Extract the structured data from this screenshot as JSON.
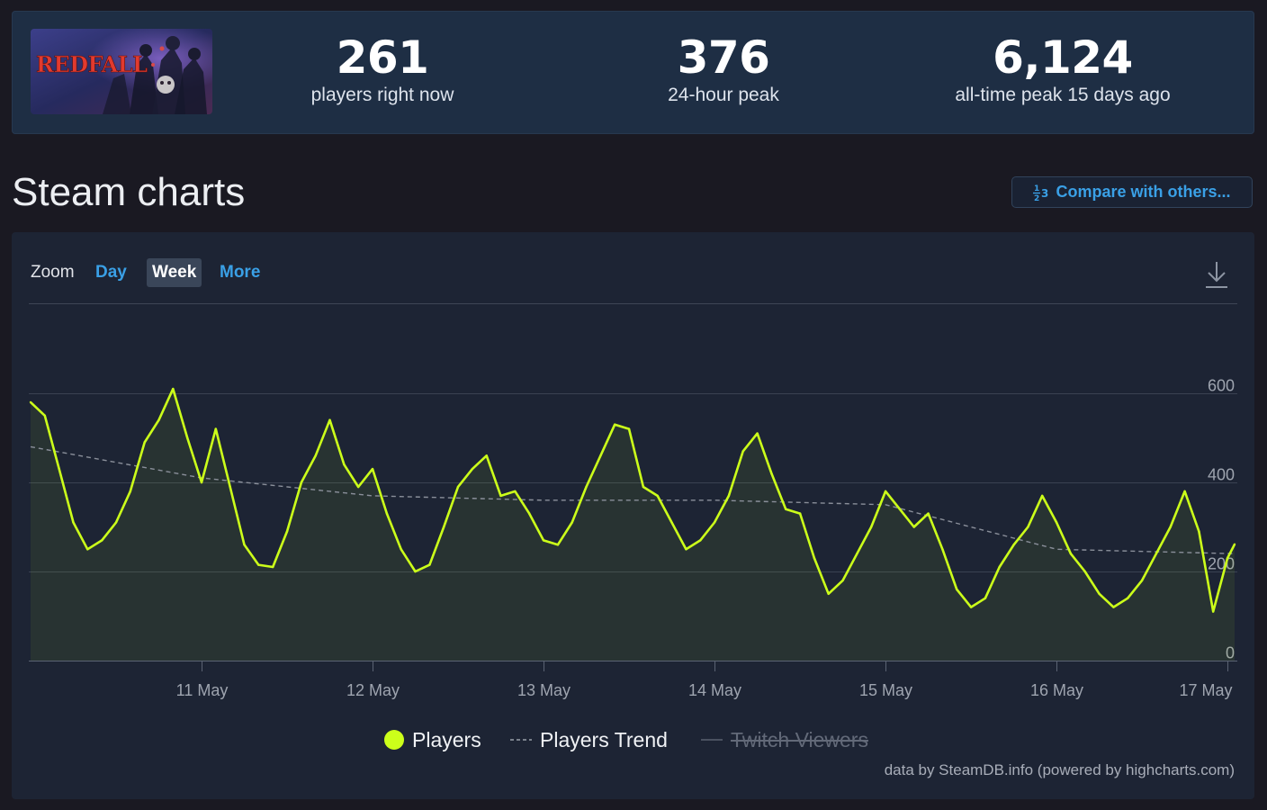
{
  "stats": {
    "game_logo_text": "REDFALL",
    "items": [
      {
        "value": "261",
        "label": "players right now"
      },
      {
        "value": "376",
        "label": "24-hour peak"
      },
      {
        "value": "6,124",
        "label": "all-time peak 15 days ago"
      }
    ]
  },
  "section_title": "Steam charts",
  "compare_button": {
    "label": "Compare with others..."
  },
  "zoom": {
    "label": "Zoom",
    "options": [
      {
        "label": "Day",
        "active": false
      },
      {
        "label": "Week",
        "active": true
      },
      {
        "label": "More",
        "active": false
      }
    ]
  },
  "colors": {
    "players_line": "#ccff1a",
    "trend_line": "#8a8f9a",
    "grid": "#3a4252"
  },
  "credits": "data by SteamDB.info (powered by highcharts.com)",
  "chart_data": {
    "type": "line",
    "x_tick_labels": [
      "11 May",
      "12 May",
      "13 May",
      "14 May",
      "15 May",
      "16 May",
      "17 May"
    ],
    "y_tick_labels": [
      "0",
      "200",
      "400",
      "600"
    ],
    "ylim": [
      0,
      600
    ],
    "grid": true,
    "legend_position": "bottom-center",
    "series": [
      {
        "name": "Players",
        "visible": true,
        "points": [
          [
            "10 May 00:00",
            580
          ],
          [
            "10 May 02:00",
            550
          ],
          [
            "10 May 04:00",
            430
          ],
          [
            "10 May 06:00",
            310
          ],
          [
            "10 May 08:00",
            250
          ],
          [
            "10 May 10:00",
            270
          ],
          [
            "10 May 12:00",
            310
          ],
          [
            "10 May 14:00",
            380
          ],
          [
            "10 May 16:00",
            490
          ],
          [
            "10 May 18:00",
            540
          ],
          [
            "10 May 20:00",
            610
          ],
          [
            "10 May 22:00",
            500
          ],
          [
            "11 May 00:00",
            400
          ],
          [
            "11 May 02:00",
            520
          ],
          [
            "11 May 04:00",
            390
          ],
          [
            "11 May 06:00",
            260
          ],
          [
            "11 May 08:00",
            215
          ],
          [
            "11 May 10:00",
            210
          ],
          [
            "11 May 12:00",
            290
          ],
          [
            "11 May 14:00",
            400
          ],
          [
            "11 May 16:00",
            460
          ],
          [
            "11 May 18:00",
            540
          ],
          [
            "11 May 20:00",
            440
          ],
          [
            "11 May 22:00",
            390
          ],
          [
            "12 May 00:00",
            430
          ],
          [
            "12 May 02:00",
            330
          ],
          [
            "12 May 04:00",
            250
          ],
          [
            "12 May 06:00",
            200
          ],
          [
            "12 May 08:00",
            215
          ],
          [
            "12 May 10:00",
            300
          ],
          [
            "12 May 12:00",
            390
          ],
          [
            "12 May 14:00",
            430
          ],
          [
            "12 May 16:00",
            460
          ],
          [
            "12 May 18:00",
            370
          ],
          [
            "12 May 20:00",
            380
          ],
          [
            "12 May 22:00",
            330
          ],
          [
            "13 May 00:00",
            270
          ],
          [
            "13 May 02:00",
            260
          ],
          [
            "13 May 04:00",
            310
          ],
          [
            "13 May 06:00",
            390
          ],
          [
            "13 May 08:00",
            460
          ],
          [
            "13 May 10:00",
            530
          ],
          [
            "13 May 12:00",
            520
          ],
          [
            "13 May 14:00",
            390
          ],
          [
            "13 May 16:00",
            370
          ],
          [
            "13 May 18:00",
            310
          ],
          [
            "13 May 20:00",
            250
          ],
          [
            "13 May 22:00",
            270
          ],
          [
            "14 May 00:00",
            310
          ],
          [
            "14 May 02:00",
            370
          ],
          [
            "14 May 04:00",
            470
          ],
          [
            "14 May 06:00",
            510
          ],
          [
            "14 May 08:00",
            420
          ],
          [
            "14 May 10:00",
            340
          ],
          [
            "14 May 12:00",
            330
          ],
          [
            "14 May 14:00",
            230
          ],
          [
            "14 May 16:00",
            150
          ],
          [
            "14 May 18:00",
            180
          ],
          [
            "14 May 20:00",
            240
          ],
          [
            "14 May 22:00",
            300
          ],
          [
            "15 May 00:00",
            380
          ],
          [
            "15 May 02:00",
            340
          ],
          [
            "15 May 04:00",
            300
          ],
          [
            "15 May 06:00",
            330
          ],
          [
            "15 May 08:00",
            250
          ],
          [
            "15 May 10:00",
            160
          ],
          [
            "15 May 12:00",
            120
          ],
          [
            "15 May 14:00",
            140
          ],
          [
            "15 May 16:00",
            210
          ],
          [
            "15 May 18:00",
            260
          ],
          [
            "15 May 20:00",
            300
          ],
          [
            "15 May 22:00",
            370
          ],
          [
            "16 May 00:00",
            310
          ],
          [
            "16 May 02:00",
            240
          ],
          [
            "16 May 04:00",
            200
          ],
          [
            "16 May 06:00",
            150
          ],
          [
            "16 May 08:00",
            120
          ],
          [
            "16 May 10:00",
            140
          ],
          [
            "16 May 12:00",
            180
          ],
          [
            "16 May 14:00",
            240
          ],
          [
            "16 May 16:00",
            300
          ],
          [
            "16 May 18:00",
            380
          ],
          [
            "16 May 20:00",
            290
          ],
          [
            "16 May 22:00",
            110
          ],
          [
            "17 May 00:00",
            230
          ],
          [
            "17 May 01:00",
            261
          ]
        ]
      },
      {
        "name": "Players Trend",
        "visible": true,
        "points": [
          [
            "10 May 00:00",
            480
          ],
          [
            "11 May 00:00",
            410
          ],
          [
            "12 May 00:00",
            370
          ],
          [
            "13 May 00:00",
            360
          ],
          [
            "14 May 00:00",
            360
          ],
          [
            "15 May 00:00",
            350
          ],
          [
            "16 May 00:00",
            250
          ],
          [
            "17 May 01:00",
            240
          ]
        ]
      },
      {
        "name": "Twitch Viewers",
        "visible": false,
        "points": []
      }
    ]
  }
}
